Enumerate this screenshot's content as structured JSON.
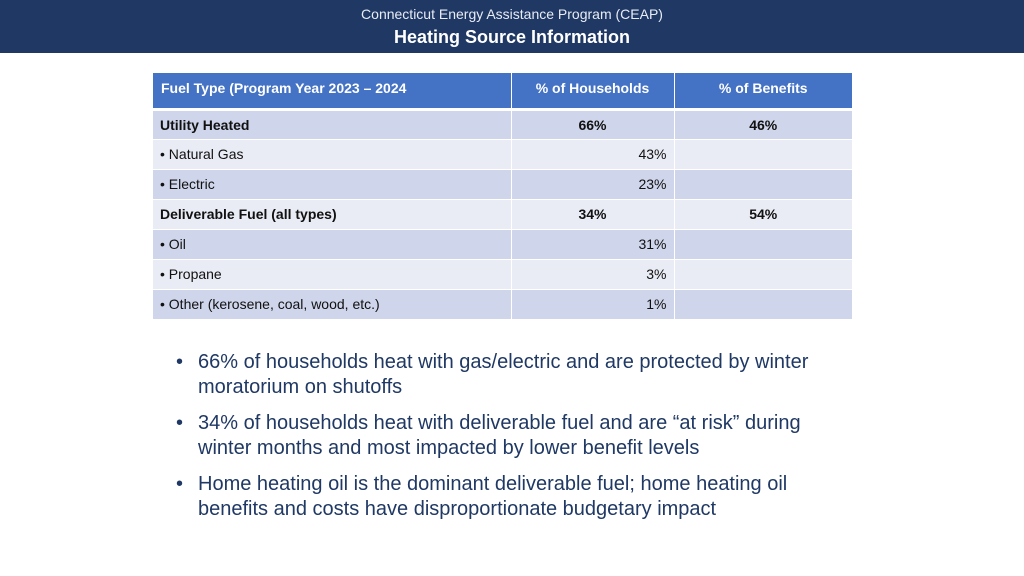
{
  "header": {
    "supertitle": "Connecticut Energy Assistance Program (CEAP)",
    "title": "Heating Source Information"
  },
  "table": {
    "headers": [
      "Fuel Type (Program Year 2023 – 2024",
      "% of Households",
      "% of Benefits"
    ],
    "rows": [
      {
        "label": "Utility Heated",
        "households": "66%",
        "benefits": "46%"
      },
      {
        "label": "• Natural Gas",
        "households": "43%",
        "benefits": ""
      },
      {
        "label": "• Electric",
        "households": "23%",
        "benefits": ""
      },
      {
        "label": "Deliverable Fuel (all types)",
        "households": "34%",
        "benefits": "54%"
      },
      {
        "label": "• Oil",
        "households": "31%",
        "benefits": ""
      },
      {
        "label": "• Propane",
        "households": "3%",
        "benefits": ""
      },
      {
        "label": "• Other (kerosene, coal, wood, etc.)",
        "households": "1%",
        "benefits": ""
      }
    ]
  },
  "bullets": [
    "66% of households heat with gas/electric and are protected by winter moratorium on shutoffs",
    "34% of households heat with deliverable fuel and are “at risk” during winter months and most impacted by lower benefit levels",
    "Home heating oil is the dominant deliverable fuel; home heating oil benefits and costs have disproportionate budgetary impact"
  ],
  "bullet_symbol": "•",
  "colors": {
    "header_bg": "#1f3864",
    "table_header_bg": "#4472c4",
    "row_dark": "#cfd5ea",
    "row_light": "#e9ebf5",
    "bullet_text": "#1f3864"
  }
}
